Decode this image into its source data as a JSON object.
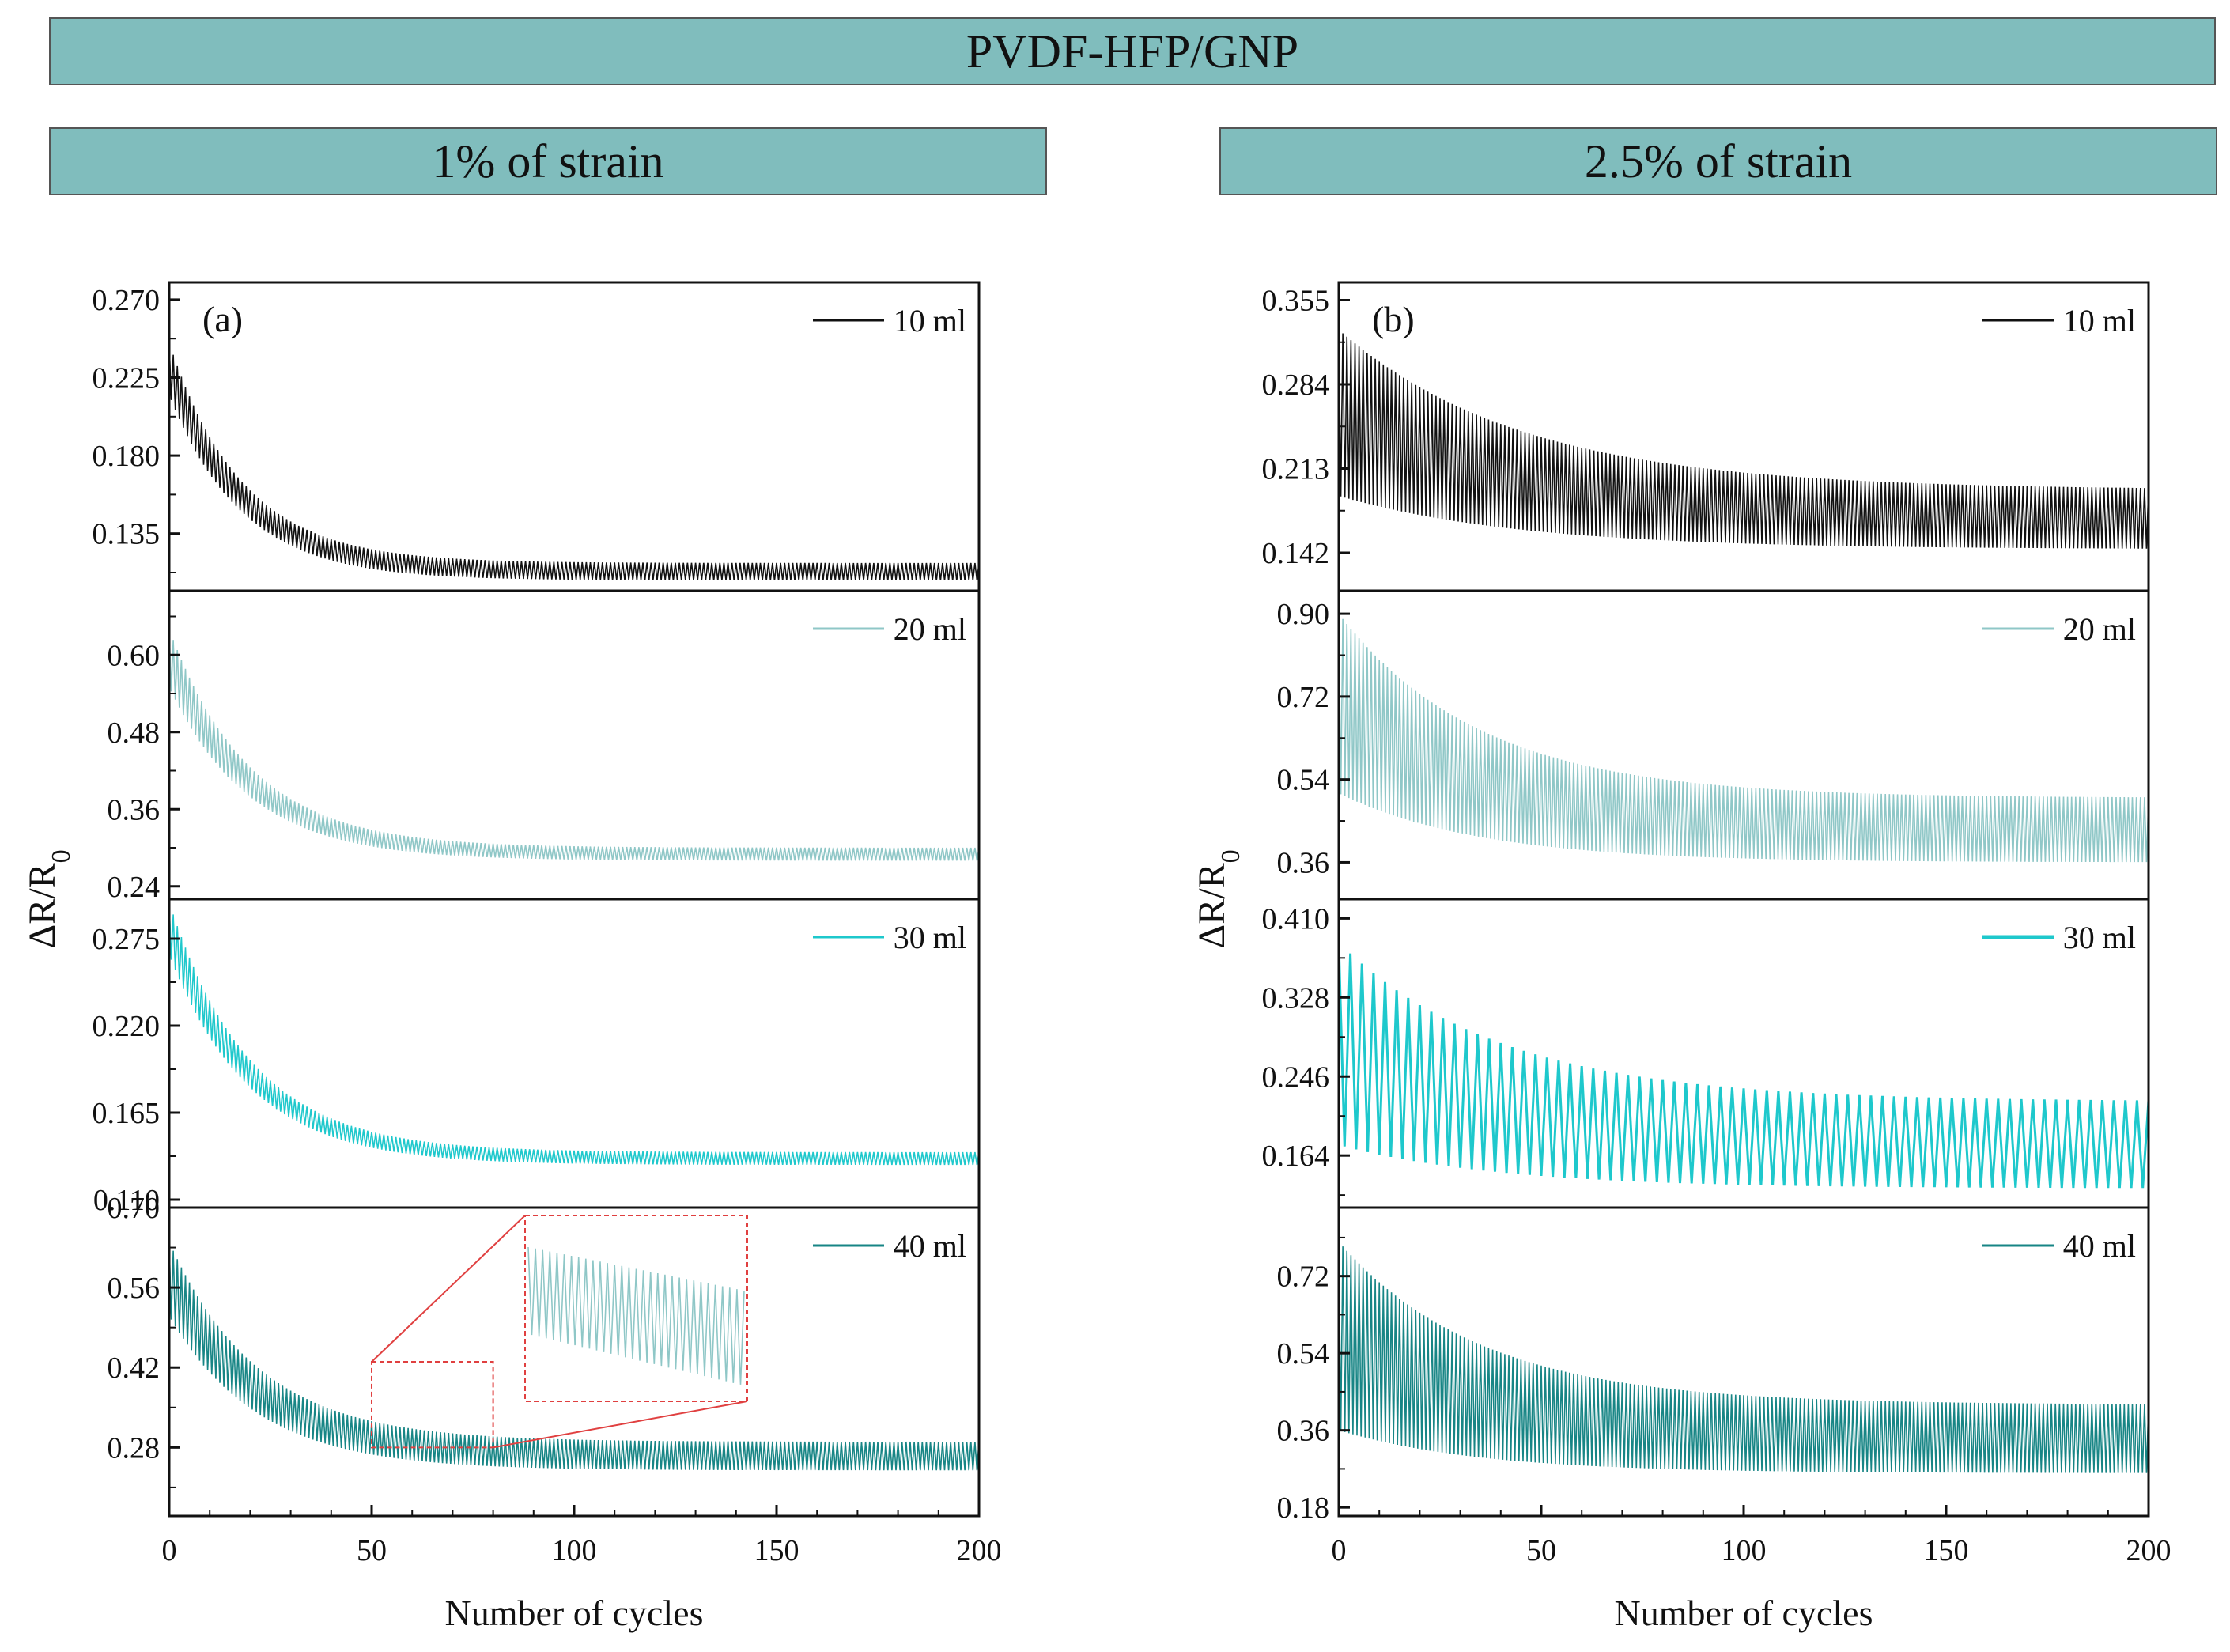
{
  "header": {
    "title": "PVDF-HFP/GNP",
    "left_title": "1% of strain",
    "right_title": "2.5% of strain"
  },
  "colors": {
    "banner": "#80bdbd",
    "10ml": "#111111",
    "20ml": "#8fc7c7",
    "30ml": "#1ec8cc",
    "40ml": "#178585",
    "zoom_box": "#e04040"
  },
  "chart_data": [
    {
      "id": "a",
      "type": "line",
      "panel_label": "(a)",
      "xlabel": "Number of cycles",
      "ylabel": "ΔR/R0",
      "xlim": [
        0,
        200
      ],
      "xticks": [
        0,
        50,
        100,
        150,
        200
      ],
      "subplots": [
        {
          "series": "10 ml",
          "color_key": "10ml",
          "ylim": [
            0.102,
            0.28
          ],
          "yticks": [
            0.135,
            0.18,
            0.225,
            0.27
          ],
          "ytick_labels": [
            "0.135",
            "0.180",
            "0.225",
            "0.270"
          ],
          "start_max": 0.245,
          "end_max": 0.118,
          "end_min": 0.108,
          "amp_start": 0.02,
          "decay": 18,
          "cycles": 200
        },
        {
          "series": "20 ml",
          "color_key": "20ml",
          "ylim": [
            0.22,
            0.7
          ],
          "yticks": [
            0.24,
            0.36,
            0.48,
            0.6
          ],
          "ytick_labels": [
            "0.24",
            "0.36",
            "0.48",
            "0.60"
          ],
          "start_max": 0.64,
          "end_max": 0.3,
          "end_min": 0.28,
          "amp_start": 0.07,
          "decay": 20,
          "cycles": 200
        },
        {
          "series": "30 ml",
          "color_key": "30ml",
          "ylim": [
            0.105,
            0.3
          ],
          "yticks": [
            0.11,
            0.165,
            0.22,
            0.275
          ],
          "ytick_labels": [
            "0.110",
            "0.165",
            "0.220",
            "0.275"
          ],
          "start_max": 0.298,
          "end_max": 0.14,
          "end_min": 0.132,
          "amp_start": 0.025,
          "decay": 20,
          "cycles": 200
        },
        {
          "series": "40 ml",
          "color_key": "40ml",
          "ylim": [
            0.16,
            0.7
          ],
          "yticks": [
            0.28,
            0.42,
            0.56,
            0.7
          ],
          "ytick_labels": [
            "0.28",
            "0.42",
            "0.56",
            "0.70"
          ],
          "start_max": 0.64,
          "end_max": 0.29,
          "end_min": 0.24,
          "amp_start": 0.08,
          "decay": 22,
          "cycles": 200
        }
      ],
      "inset": {
        "x_range": [
          50,
          80
        ],
        "y_range": [
          0.28,
          0.43
        ],
        "note": "zoomed view of 40 ml signal"
      }
    },
    {
      "id": "b",
      "type": "line",
      "panel_label": "(b)",
      "xlabel": "Number of cycles",
      "ylabel": "ΔR/R0",
      "xlim": [
        0,
        200
      ],
      "xticks": [
        0,
        50,
        100,
        150,
        200
      ],
      "subplots": [
        {
          "series": "10 ml",
          "color_key": "10ml",
          "ylim": [
            0.11,
            0.37
          ],
          "yticks": [
            0.142,
            0.213,
            0.284,
            0.355
          ],
          "ytick_labels": [
            "0.142",
            "0.213",
            "0.284",
            "0.355"
          ],
          "start_max": 0.33,
          "end_max": 0.195,
          "end_min": 0.145,
          "amp_start": 0.09,
          "decay": 45,
          "cycles": 200
        },
        {
          "series": "20 ml",
          "color_key": "20ml",
          "ylim": [
            0.28,
            0.95
          ],
          "yticks": [
            0.36,
            0.54,
            0.72,
            0.9
          ],
          "ytick_labels": [
            "0.36",
            "0.54",
            "0.72",
            "0.90"
          ],
          "start_max": 0.9,
          "end_max": 0.5,
          "end_min": 0.36,
          "amp_start": 0.25,
          "decay": 35,
          "cycles": 200
        },
        {
          "series": "30 ml",
          "color_key": "30ml",
          "ylim": [
            0.11,
            0.43
          ],
          "yticks": [
            0.164,
            0.246,
            0.328,
            0.41
          ],
          "ytick_labels": [
            "0.164",
            "0.246",
            "0.328",
            "0.410"
          ],
          "start_max": 0.385,
          "end_max": 0.22,
          "end_min": 0.13,
          "amp_start": 0.12,
          "decay": 40,
          "cycles": 70
        },
        {
          "series": "40 ml",
          "color_key": "40ml",
          "ylim": [
            0.16,
            0.88
          ],
          "yticks": [
            0.18,
            0.36,
            0.54,
            0.72
          ],
          "ytick_labels": [
            "0.18",
            "0.36",
            "0.54",
            "0.72"
          ],
          "start_max": 0.8,
          "end_max": 0.42,
          "end_min": 0.26,
          "amp_start": 0.28,
          "decay": 35,
          "cycles": 200
        }
      ]
    }
  ]
}
